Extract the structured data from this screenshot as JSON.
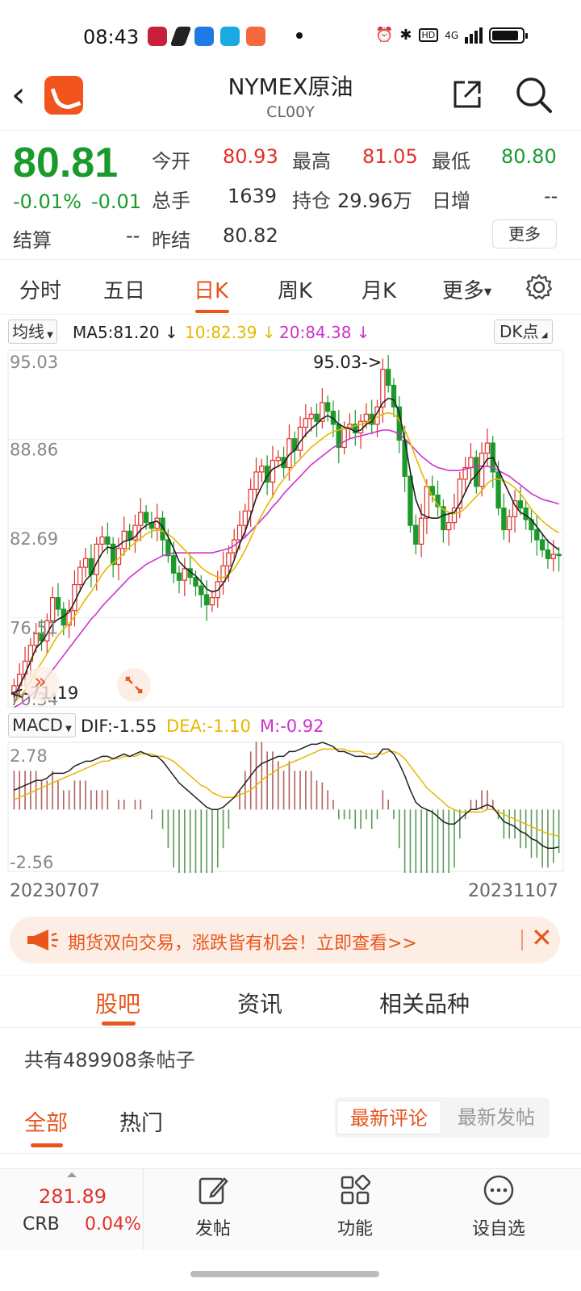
{
  "status": {
    "time": "08:43",
    "network": "4G"
  },
  "header": {
    "title": "NYMEX原油",
    "code": "CL00Y"
  },
  "quote": {
    "price": "80.81",
    "change_pct": "-0.01%",
    "change": "-0.01",
    "open_label": "今开",
    "open": "80.93",
    "high_label": "最高",
    "high": "81.05",
    "low_label": "最低",
    "low": "80.80",
    "volume_label": "总手",
    "volume": "1639",
    "oi_label": "持仓",
    "oi": "29.96万",
    "daily_inc_label": "日增",
    "daily_inc": "--",
    "settle_label": "结算",
    "settle": "--",
    "prev_settle_label": "昨结",
    "prev_settle": "80.82",
    "more_label": "更多"
  },
  "period_tabs": [
    "分时",
    "五日",
    "日K",
    "周K",
    "月K",
    "更多"
  ],
  "active_period": "日K",
  "ma_bar": {
    "selector": "均线",
    "ma5": "MA5:81.20",
    "ma10": "10:82.39",
    "ma20": "20:84.38",
    "dk_label": "DK点",
    "ma5_color": "#222222",
    "ma10_color": "#e6b800",
    "ma20_color": "#cc33cc"
  },
  "macd_bar": {
    "selector": "MACD",
    "dif": "DIF:-1.55",
    "dea": "DEA:-1.10",
    "m": "M:-0.92"
  },
  "chart_data": [
    {
      "type": "candlestick",
      "y_axis_ticks": [
        "95.03",
        "88.86",
        "82.69",
        "76.51",
        "70.34"
      ],
      "ylim": [
        70.34,
        95.03
      ],
      "max_annotation": "95.03->",
      "min_annotation": "<-71.19",
      "up_color": "#e0302a",
      "down_color": "#1a9a2a",
      "closes": [
        71.8,
        72.6,
        73.5,
        74.6,
        75.4,
        74.9,
        76.3,
        77.9,
        77.1,
        76.0,
        77.0,
        78.8,
        80.0,
        80.6,
        79.5,
        81.6,
        82.1,
        81.6,
        80.2,
        81.3,
        82.5,
        81.9,
        82.9,
        83.8,
        83.1,
        82.7,
        83.4,
        81.9,
        80.8,
        79.6,
        79.1,
        79.9,
        79.3,
        78.7,
        78.1,
        77.4,
        77.9,
        79.0,
        80.1,
        81.0,
        81.9,
        82.9,
        83.9,
        85.4,
        86.6,
        87.0,
        85.9,
        87.4,
        87.6,
        86.9,
        88.9,
        88.1,
        89.7,
        90.3,
        90.6,
        90.1,
        91.4,
        90.8,
        89.9,
        88.3,
        89.6,
        89.9,
        89.3,
        90.1,
        90.6,
        89.9,
        91.1,
        93.7,
        92.6,
        91.1,
        88.8,
        86.3,
        82.9,
        81.6,
        83.4,
        85.6,
        85.0,
        84.2,
        82.6,
        83.1,
        84.1,
        86.1,
        86.9,
        87.6,
        85.6,
        87.9,
        88.6,
        86.6,
        84.1,
        82.6,
        83.5,
        84.6,
        84.1,
        83.3,
        82.6,
        81.9,
        81.2,
        80.6,
        80.9,
        80.81
      ],
      "ma5_series": [
        71.0,
        71.8,
        72.6,
        73.5,
        74.4,
        74.8,
        75.4,
        76.1,
        76.4,
        76.6,
        76.9,
        77.6,
        78.4,
        79.1,
        79.5,
        80.3,
        81.0,
        81.4,
        81.3,
        81.5,
        81.8,
        81.9,
        82.1,
        82.6,
        82.9,
        83.1,
        83.2,
        82.8,
        82.1,
        81.3,
        80.4,
        80.0,
        79.7,
        79.4,
        79.0,
        78.5,
        78.3,
        78.4,
        78.9,
        79.5,
        80.5,
        81.6,
        82.5,
        83.6,
        84.8,
        85.6,
        86.3,
        86.8,
        87.0,
        87.2,
        87.8,
        88.1,
        88.7,
        89.2,
        89.6,
        89.9,
        90.3,
        90.5,
        90.3,
        89.9,
        89.7,
        89.6,
        89.4,
        89.5,
        89.9,
        90.1,
        90.7,
        91.4,
        91.7,
        91.6,
        90.7,
        88.8,
        86.6,
        84.7,
        83.7,
        83.5,
        83.4,
        83.4,
        83.6,
        83.7,
        83.8,
        84.4,
        85.2,
        86.0,
        86.4,
        86.9,
        87.5,
        87.6,
        86.8,
        85.9,
        85.1,
        84.3,
        83.8,
        83.6,
        83.3,
        82.8,
        82.3,
        81.8,
        81.5,
        81.2
      ],
      "ma10_series": [
        70.6,
        71.0,
        71.5,
        72.1,
        72.8,
        73.4,
        74.0,
        74.7,
        75.3,
        75.7,
        76.1,
        76.6,
        77.2,
        77.8,
        78.3,
        78.9,
        79.5,
        80.0,
        80.3,
        80.6,
        81.0,
        81.4,
        81.7,
        82.0,
        82.3,
        82.5,
        82.6,
        82.5,
        82.3,
        82.0,
        81.6,
        81.2,
        80.8,
        80.4,
        80.0,
        79.7,
        79.5,
        79.3,
        79.3,
        79.5,
        79.9,
        80.5,
        81.2,
        82.0,
        82.9,
        83.6,
        84.3,
        84.9,
        85.6,
        86.1,
        86.6,
        87.1,
        87.5,
        87.9,
        88.3,
        88.6,
        88.9,
        89.2,
        89.4,
        89.5,
        89.6,
        89.7,
        89.8,
        89.9,
        90.0,
        90.2,
        90.4,
        90.6,
        90.7,
        90.6,
        90.2,
        89.5,
        88.6,
        87.6,
        86.6,
        85.7,
        84.9,
        84.3,
        84.0,
        83.8,
        83.7,
        83.8,
        84.1,
        84.5,
        84.9,
        85.3,
        85.8,
        86.1,
        86.1,
        86.0,
        85.8,
        85.5,
        85.1,
        84.6,
        84.0,
        83.6,
        83.2,
        82.9,
        82.6,
        82.39
      ],
      "ma20_series": [
        70.3,
        70.5,
        70.8,
        71.1,
        71.5,
        71.9,
        72.4,
        72.9,
        73.4,
        73.9,
        74.4,
        74.9,
        75.4,
        75.9,
        76.4,
        76.8,
        77.3,
        77.7,
        78.1,
        78.5,
        78.9,
        79.3,
        79.6,
        79.9,
        80.2,
        80.4,
        80.6,
        80.8,
        80.9,
        81.0,
        81.0,
        81.0,
        81.0,
        81.0,
        81.0,
        81.0,
        81.0,
        81.1,
        81.2,
        81.3,
        81.5,
        81.8,
        82.1,
        82.5,
        82.9,
        83.3,
        83.7,
        84.2,
        84.6,
        85.1,
        85.5,
        85.9,
        86.3,
        86.7,
        87.1,
        87.4,
        87.7,
        88.0,
        88.3,
        88.5,
        88.7,
        88.9,
        89.0,
        89.1,
        89.2,
        89.3,
        89.4,
        89.5,
        89.5,
        89.4,
        89.2,
        88.9,
        88.5,
        88.1,
        87.7,
        87.4,
        87.1,
        86.9,
        86.8,
        86.7,
        86.7,
        86.7,
        86.8,
        86.9,
        87.0,
        87.0,
        87.0,
        86.9,
        86.7,
        86.5,
        86.3,
        86.0,
        85.7,
        85.4,
        85.1,
        84.9,
        84.7,
        84.6,
        84.5,
        84.38
      ]
    },
    {
      "type": "macd",
      "y_axis_ticks": [
        "2.78",
        "-2.56"
      ],
      "ylim": [
        -2.56,
        2.78
      ],
      "dif_color": "#222222",
      "dea_color": "#e6b800",
      "hist_pos_color": "#b06060",
      "hist_neg_color": "#5a9a5a",
      "dif": [
        0.8,
        0.9,
        1.0,
        1.1,
        1.2,
        1.2,
        1.3,
        1.5,
        1.5,
        1.5,
        1.6,
        1.8,
        1.9,
        2.0,
        2.0,
        2.1,
        2.2,
        2.2,
        2.1,
        2.2,
        2.3,
        2.2,
        2.3,
        2.4,
        2.3,
        2.2,
        2.2,
        2.0,
        1.7,
        1.4,
        1.1,
        0.9,
        0.7,
        0.5,
        0.3,
        0.1,
        0.0,
        0.0,
        0.1,
        0.3,
        0.5,
        0.8,
        1.1,
        1.4,
        1.7,
        1.9,
        2.0,
        2.1,
        2.2,
        2.2,
        2.4,
        2.4,
        2.5,
        2.6,
        2.7,
        2.7,
        2.78,
        2.7,
        2.6,
        2.4,
        2.4,
        2.3,
        2.2,
        2.2,
        2.2,
        2.1,
        2.2,
        2.5,
        2.5,
        2.3,
        1.9,
        1.4,
        0.8,
        0.3,
        0.1,
        0.0,
        -0.1,
        -0.3,
        -0.5,
        -0.6,
        -0.6,
        -0.4,
        -0.2,
        0.0,
        0.0,
        0.1,
        0.2,
        0.1,
        -0.2,
        -0.5,
        -0.6,
        -0.7,
        -0.9,
        -1.0,
        -1.2,
        -1.3,
        -1.5,
        -1.6,
        -1.6,
        -1.55
      ],
      "dea": [
        0.4,
        0.5,
        0.6,
        0.7,
        0.8,
        0.9,
        1.0,
        1.1,
        1.2,
        1.3,
        1.4,
        1.5,
        1.6,
        1.7,
        1.8,
        1.9,
        2.0,
        2.0,
        2.1,
        2.1,
        2.2,
        2.2,
        2.2,
        2.3,
        2.3,
        2.3,
        2.2,
        2.2,
        2.1,
        2.0,
        1.8,
        1.6,
        1.4,
        1.2,
        1.0,
        0.9,
        0.7,
        0.6,
        0.5,
        0.5,
        0.5,
        0.6,
        0.7,
        0.8,
        1.0,
        1.2,
        1.4,
        1.5,
        1.7,
        1.8,
        1.9,
        2.0,
        2.1,
        2.2,
        2.3,
        2.4,
        2.5,
        2.5,
        2.5,
        2.5,
        2.5,
        2.4,
        2.4,
        2.4,
        2.3,
        2.3,
        2.3,
        2.3,
        2.4,
        2.4,
        2.3,
        2.1,
        1.8,
        1.5,
        1.2,
        0.9,
        0.7,
        0.5,
        0.3,
        0.1,
        0.0,
        -0.1,
        -0.1,
        -0.1,
        -0.1,
        -0.1,
        0.0,
        0.0,
        -0.1,
        -0.2,
        -0.3,
        -0.4,
        -0.5,
        -0.6,
        -0.7,
        -0.8,
        -0.9,
        -1.0,
        -1.05,
        -1.1
      ]
    }
  ],
  "dates": {
    "start": "20230707",
    "end": "20231107"
  },
  "promo": {
    "text": "期货双向交易，涨跌皆有机会！立即查看>>"
  },
  "section_tabs": [
    "股吧",
    "资讯",
    "相关品种"
  ],
  "active_section": "股吧",
  "posts_count": "共有489908条帖子",
  "filter_tabs": [
    "全部",
    "热门"
  ],
  "sort_options": [
    "最新评论",
    "最新发帖"
  ],
  "bottom_bar": {
    "index_value": "281.89",
    "index_name": "CRB",
    "index_pct": "0.04%",
    "nav": [
      {
        "label": "发帖",
        "icon": "edit-icon"
      },
      {
        "label": "功能",
        "icon": "grid-icon"
      },
      {
        "label": "设自选",
        "icon": "more-circle-icon"
      }
    ]
  }
}
